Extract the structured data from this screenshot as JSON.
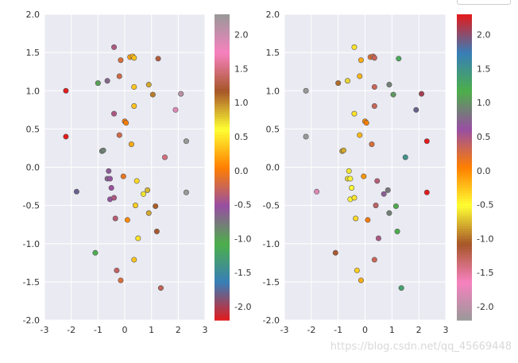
{
  "watermark": "https://blog.csdn.net/qq_45669448",
  "chart_data": [
    {
      "type": "scatter",
      "xlim": [
        -3,
        3
      ],
      "ylim": [
        -2,
        2
      ],
      "xticks": [
        "-3",
        "-2",
        "-1",
        "0",
        "1",
        "2",
        "3"
      ],
      "yticks": [
        "2.0",
        "1.5",
        "1.0",
        "0.5",
        "0.0",
        "-0.5",
        "-1.0",
        "-1.5",
        "-2.0"
      ],
      "grid": true,
      "colorbar": {
        "range": [
          -2.2,
          2.3
        ],
        "ticks": [
          "2.0",
          "1.5",
          "1.0",
          "0.5",
          "0.0",
          "-0.5",
          "-1.0",
          "-1.5",
          "-2.0"
        ],
        "colormap": "Set1 reversed (bottom red to top grey)"
      },
      "points": [
        {
          "x": -2.2,
          "y": 1.0,
          "c": -2.2
        },
        {
          "x": -2.2,
          "y": 0.4,
          "c": -2.2
        },
        {
          "x": -1.8,
          "y": -0.32,
          "c": -1.8
        },
        {
          "x": -1.0,
          "y": 1.1,
          "c": -1.0
        },
        {
          "x": -1.1,
          "y": -1.12,
          "c": -1.1
        },
        {
          "x": -0.85,
          "y": 0.21,
          "c": -0.85
        },
        {
          "x": -0.8,
          "y": 0.22,
          "c": -0.8
        },
        {
          "x": -0.65,
          "y": 1.13,
          "c": -0.65
        },
        {
          "x": -0.6,
          "y": -0.05,
          "c": -0.6
        },
        {
          "x": -0.65,
          "y": -0.15,
          "c": -0.65
        },
        {
          "x": -0.55,
          "y": -0.15,
          "c": -0.55
        },
        {
          "x": -0.5,
          "y": -0.27,
          "c": -0.5
        },
        {
          "x": -0.55,
          "y": -0.42,
          "c": -0.55
        },
        {
          "x": -0.4,
          "y": -0.4,
          "c": -0.4
        },
        {
          "x": -0.4,
          "y": 1.57,
          "c": -0.4
        },
        {
          "x": -0.4,
          "y": 0.7,
          "c": -0.4
        },
        {
          "x": -0.35,
          "y": -0.67,
          "c": -0.35
        },
        {
          "x": -0.3,
          "y": -1.35,
          "c": -0.3
        },
        {
          "x": -0.2,
          "y": 1.19,
          "c": -0.2
        },
        {
          "x": -0.2,
          "y": 0.42,
          "c": -0.2
        },
        {
          "x": -0.15,
          "y": 1.4,
          "c": -0.15
        },
        {
          "x": -0.15,
          "y": -1.48,
          "c": -0.15
        },
        {
          "x": -0.05,
          "y": -0.12,
          "c": -0.05
        },
        {
          "x": 0.0,
          "y": 0.6,
          "c": 0.0
        },
        {
          "x": 0.05,
          "y": 0.58,
          "c": 0.05
        },
        {
          "x": 0.1,
          "y": -0.69,
          "c": 0.1
        },
        {
          "x": 0.2,
          "y": 1.44,
          "c": 0.2
        },
        {
          "x": 0.25,
          "y": 0.3,
          "c": 0.25
        },
        {
          "x": 0.3,
          "y": 1.45,
          "c": 0.3
        },
        {
          "x": 0.35,
          "y": 1.43,
          "c": 0.35
        },
        {
          "x": 0.35,
          "y": 1.05,
          "c": 0.35
        },
        {
          "x": 0.35,
          "y": 0.8,
          "c": 0.35
        },
        {
          "x": 0.35,
          "y": -1.21,
          "c": 0.35
        },
        {
          "x": 0.4,
          "y": -0.5,
          "c": 0.4
        },
        {
          "x": 0.45,
          "y": -0.18,
          "c": 0.45
        },
        {
          "x": 0.5,
          "y": -0.93,
          "c": 0.5
        },
        {
          "x": 0.7,
          "y": -0.35,
          "c": 0.7
        },
        {
          "x": 0.85,
          "y": -0.3,
          "c": 0.85
        },
        {
          "x": 0.9,
          "y": -0.6,
          "c": 0.9
        },
        {
          "x": 0.9,
          "y": 1.08,
          "c": 0.9
        },
        {
          "x": 1.05,
          "y": 0.95,
          "c": 1.05
        },
        {
          "x": 1.15,
          "y": -0.51,
          "c": 1.15
        },
        {
          "x": 1.2,
          "y": -0.84,
          "c": 1.2
        },
        {
          "x": 1.25,
          "y": 1.42,
          "c": 1.25
        },
        {
          "x": 1.35,
          "y": -1.58,
          "c": 1.35
        },
        {
          "x": 1.5,
          "y": 0.13,
          "c": 1.5
        },
        {
          "x": 1.9,
          "y": 0.75,
          "c": 1.9
        },
        {
          "x": 2.1,
          "y": 0.96,
          "c": 2.1
        },
        {
          "x": 2.3,
          "y": 0.34,
          "c": 2.3
        },
        {
          "x": 2.3,
          "y": -0.33,
          "c": 2.3
        }
      ]
    },
    {
      "type": "scatter",
      "xlim": [
        -3,
        3
      ],
      "ylim": [
        -2,
        2
      ],
      "xticks": [
        "-3",
        "-2",
        "-1",
        "0",
        "1",
        "2",
        "3"
      ],
      "yticks": [
        "2.0",
        "1.5",
        "1.0",
        "0.5",
        "0.0",
        "-0.5",
        "-1.0",
        "-1.5",
        "-2.0"
      ],
      "grid": true,
      "colorbar": {
        "range": [
          -2.2,
          2.3
        ],
        "ticks": [
          "2.0",
          "1.5",
          "1.0",
          "0.5",
          "0.0",
          "-0.5",
          "-1.0",
          "-1.5",
          "-2.0"
        ],
        "colormap": "Set1 (bottom grey to top red)"
      },
      "points": [
        {
          "x": -2.2,
          "y": 1.0,
          "c": -2.2
        },
        {
          "x": -2.2,
          "y": 0.4,
          "c": -2.2
        },
        {
          "x": -1.8,
          "y": -0.32,
          "c": -1.8
        },
        {
          "x": -1.0,
          "y": 1.1,
          "c": -1.0
        },
        {
          "x": -1.1,
          "y": -1.12,
          "c": -1.1
        },
        {
          "x": -0.85,
          "y": 0.21,
          "c": -0.85
        },
        {
          "x": -0.8,
          "y": 0.22,
          "c": -0.8
        },
        {
          "x": -0.65,
          "y": 1.13,
          "c": -0.65
        },
        {
          "x": -0.6,
          "y": -0.05,
          "c": -0.6
        },
        {
          "x": -0.65,
          "y": -0.15,
          "c": -0.65
        },
        {
          "x": -0.55,
          "y": -0.15,
          "c": -0.55
        },
        {
          "x": -0.5,
          "y": -0.27,
          "c": -0.5
        },
        {
          "x": -0.55,
          "y": -0.42,
          "c": -0.55
        },
        {
          "x": -0.4,
          "y": -0.4,
          "c": -0.4
        },
        {
          "x": -0.4,
          "y": 1.57,
          "c": -0.4
        },
        {
          "x": -0.4,
          "y": 0.7,
          "c": -0.4
        },
        {
          "x": -0.35,
          "y": -0.67,
          "c": -0.35
        },
        {
          "x": -0.3,
          "y": -1.35,
          "c": -0.3
        },
        {
          "x": -0.2,
          "y": 1.19,
          "c": -0.2
        },
        {
          "x": -0.2,
          "y": 0.42,
          "c": -0.2
        },
        {
          "x": -0.15,
          "y": 1.4,
          "c": -0.15
        },
        {
          "x": -0.15,
          "y": -1.48,
          "c": -0.15
        },
        {
          "x": -0.05,
          "y": -0.12,
          "c": -0.05
        },
        {
          "x": 0.0,
          "y": 0.6,
          "c": 0.0
        },
        {
          "x": 0.05,
          "y": 0.58,
          "c": 0.05
        },
        {
          "x": 0.1,
          "y": -0.69,
          "c": 0.1
        },
        {
          "x": 0.2,
          "y": 1.44,
          "c": 0.2
        },
        {
          "x": 0.25,
          "y": 0.3,
          "c": 0.25
        },
        {
          "x": 0.3,
          "y": 1.45,
          "c": 0.3
        },
        {
          "x": 0.35,
          "y": 1.43,
          "c": 0.35
        },
        {
          "x": 0.35,
          "y": 1.05,
          "c": 0.35
        },
        {
          "x": 0.35,
          "y": 0.8,
          "c": 0.35
        },
        {
          "x": 0.35,
          "y": -1.21,
          "c": 0.35
        },
        {
          "x": 0.4,
          "y": -0.5,
          "c": 0.4
        },
        {
          "x": 0.45,
          "y": -0.18,
          "c": 0.45
        },
        {
          "x": 0.5,
          "y": -0.93,
          "c": 0.5
        },
        {
          "x": 0.7,
          "y": -0.35,
          "c": 0.7
        },
        {
          "x": 0.85,
          "y": -0.3,
          "c": 0.85
        },
        {
          "x": 0.9,
          "y": -0.6,
          "c": 0.9
        },
        {
          "x": 0.9,
          "y": 1.08,
          "c": 0.9
        },
        {
          "x": 1.05,
          "y": 0.95,
          "c": 1.05
        },
        {
          "x": 1.15,
          "y": -0.51,
          "c": 1.15
        },
        {
          "x": 1.2,
          "y": -0.84,
          "c": 1.2
        },
        {
          "x": 1.25,
          "y": 1.42,
          "c": 1.25
        },
        {
          "x": 1.35,
          "y": -1.58,
          "c": 1.35
        },
        {
          "x": 1.5,
          "y": 0.13,
          "c": 1.5
        },
        {
          "x": 1.9,
          "y": 0.75,
          "c": 1.9
        },
        {
          "x": 2.1,
          "y": 0.96,
          "c": 2.1
        },
        {
          "x": 2.3,
          "y": 0.34,
          "c": 2.3
        },
        {
          "x": 2.3,
          "y": -0.33,
          "c": 2.3
        }
      ]
    }
  ],
  "colors": {
    "axes_bg": "#eaeaf2",
    "grid": "#ffffff",
    "point_edge": "#555555",
    "set1": [
      "#e41a1c",
      "#377eb8",
      "#4daf4a",
      "#984ea3",
      "#ff7f00",
      "#ffff33",
      "#a65628",
      "#f781bf",
      "#999999"
    ]
  }
}
